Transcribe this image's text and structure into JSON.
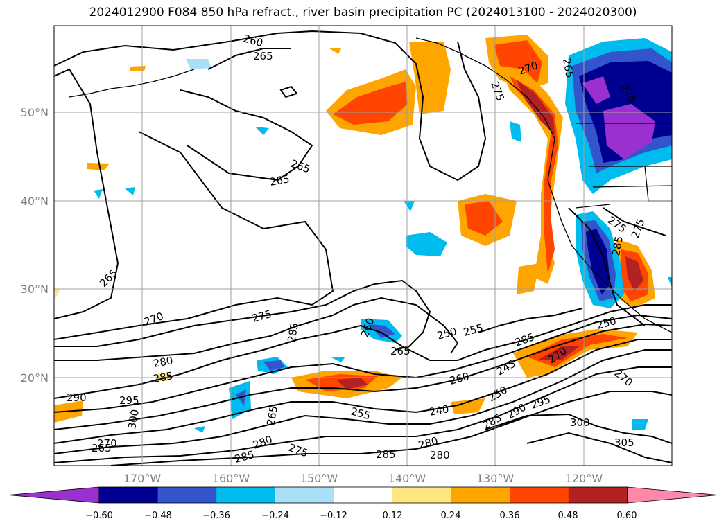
{
  "title": "2024012900 F084 850 hPa refract., river basin precipitation PC (2024013100 - 2024020300)",
  "map": {
    "lat_labels": [
      "50°N",
      "40°N",
      "30°N",
      "20°N"
    ],
    "lon_labels": [
      "170°W",
      "160°W",
      "150°W",
      "140°W",
      "130°W",
      "120°W"
    ],
    "contour_labels": [
      "260",
      "265",
      "265",
      "265",
      "265",
      "270",
      "275",
      "285",
      "260",
      "265",
      "250",
      "255",
      "285",
      "280",
      "285",
      "290",
      "295",
      "300",
      "270",
      "265",
      "285",
      "280",
      "275",
      "265",
      "255",
      "240",
      "250",
      "245",
      "260",
      "270",
      "285",
      "290",
      "295",
      "300",
      "280",
      "280",
      "285",
      "305",
      "250",
      "270",
      "270",
      "265",
      "285",
      "275",
      "275",
      "275",
      "275"
    ]
  },
  "colorbar": {
    "ticks": [
      "−0.60",
      "−0.48",
      "−0.36",
      "−0.24",
      "−0.12",
      "0.12",
      "0.24",
      "0.36",
      "0.48",
      "0.60"
    ],
    "colors": [
      "#9b30d0",
      "#000090",
      "#3355cc",
      "#00bbee",
      "#aadff8",
      "#ffffff",
      "#ffe680",
      "#ffa500",
      "#ff4500",
      "#b22222",
      "#ff88aa"
    ]
  }
}
